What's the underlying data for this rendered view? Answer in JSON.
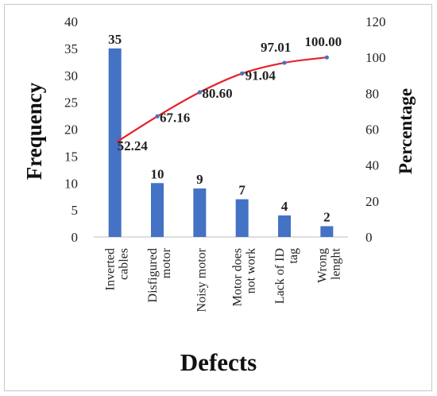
{
  "chart_data": {
    "type": "bar",
    "title": "",
    "xlabel": "Defects",
    "ylabel": "Frequency",
    "y2label": "Percentage",
    "categories": [
      [
        "Inverted",
        "cables"
      ],
      [
        "Disfigured",
        "motor"
      ],
      [
        "Noisy motor"
      ],
      [
        "Motor does",
        "not work"
      ],
      [
        "Lack of ID",
        "tag"
      ],
      [
        "Wrong",
        "lenght"
      ]
    ],
    "series": [
      {
        "values": [
          35,
          10,
          9,
          7,
          4,
          2
        ],
        "type": "bar",
        "color": "#4472c4",
        "labels": [
          "35",
          "10",
          "9",
          "7",
          "4",
          "2"
        ]
      },
      {
        "values": [
          52.24,
          67.16,
          80.6,
          91.04,
          97.01,
          100.0
        ],
        "type": "line",
        "axis": "right",
        "color": "#e8202a",
        "marker_color": "#4472c4",
        "labels": [
          "52.24",
          "67.16",
          "80.60",
          "91.04",
          "97.01",
          "100.00"
        ]
      }
    ],
    "ylim": [
      0,
      40
    ],
    "yticks": [
      "0",
      "5",
      "10",
      "15",
      "20",
      "25",
      "30",
      "35",
      "40"
    ],
    "y2lim": [
      0,
      120
    ],
    "y2ticks": [
      "0",
      "20",
      "40",
      "60",
      "80",
      "100",
      "120"
    ],
    "grid": false,
    "legend": "none"
  }
}
